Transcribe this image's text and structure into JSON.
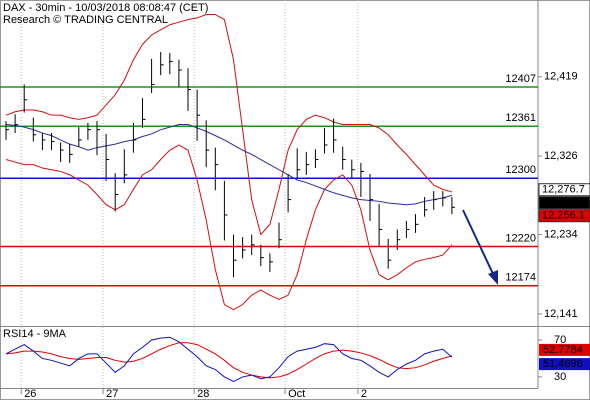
{
  "chart_data": {
    "type": "ohlc",
    "title": "DAX - 30min - 10/03/2018 08:08:47 (CET)",
    "subtitle": "Research © TRADING CENTRAL",
    "categories": [
      null,
      null,
      "26",
      null,
      null,
      null,
      null,
      null,
      null,
      null,
      null,
      "27",
      null,
      null,
      null,
      null,
      null,
      null,
      null,
      null,
      null,
      "28",
      null,
      null,
      null,
      null,
      null,
      null,
      null,
      null,
      null,
      "Oct",
      null,
      null,
      null,
      null,
      null,
      null,
      null,
      "2",
      null,
      null,
      null,
      null,
      null,
      null,
      null,
      null,
      null,
      null
    ],
    "ylim": [
      12128,
      12509
    ],
    "yticks": [
      {
        "value": 12419,
        "label": "12,419"
      },
      {
        "value": 12326,
        "label": "12,326"
      },
      {
        "value": 12234,
        "label": "12,234"
      },
      {
        "value": 12141,
        "label": "12,141"
      }
    ],
    "high": [
      12367,
      12375,
      12410,
      12371,
      12353,
      12353,
      12342,
      12340,
      12360,
      12365,
      12367,
      12352,
      12306,
      12334,
      12365,
      12394,
      12440,
      12448,
      12447,
      12439,
      12429,
      12404,
      12368,
      12336,
      12297,
      12234,
      12231,
      12234,
      12222,
      12212,
      12248,
      12305,
      12335,
      12331,
      12334,
      12359,
      12370,
      12337,
      12322,
      12318,
      12305,
      12270,
      12229,
      12240,
      12250,
      12258,
      12278,
      12285,
      12285,
      12278
    ],
    "low": [
      12345,
      12353,
      12377,
      12343,
      12333,
      12333,
      12319,
      12318,
      12337,
      12345,
      12327,
      12297,
      12261,
      12294,
      12330,
      12359,
      12400,
      12421,
      12422,
      12407,
      12379,
      12344,
      12313,
      12286,
      12227,
      12184,
      12206,
      12210,
      12197,
      12190,
      12218,
      12260,
      12300,
      12304,
      12312,
      12329,
      12330,
      12310,
      12300,
      12278,
      12250,
      12220,
      12194,
      12216,
      12230,
      12236,
      12255,
      12263,
      12267,
      12258
    ],
    "close": [
      12357,
      12363,
      12392,
      12351,
      12345,
      12343,
      12333,
      12328,
      12345,
      12357,
      12357,
      12322,
      12281,
      12304,
      12345,
      12369,
      12410,
      12433,
      12437,
      12427,
      12404,
      12374,
      12333,
      12316,
      12257,
      12204,
      12216,
      12222,
      12207,
      12202,
      12228,
      12275,
      12310,
      12316,
      12322,
      12339,
      12345,
      12322,
      12310,
      12308,
      12275,
      12240,
      12204,
      12228,
      12240,
      12246,
      12263,
      12275,
      12277,
      12266
    ],
    "ma": [
      12363,
      12362,
      12360,
      12357,
      12353,
      12350,
      12345,
      12340,
      12337,
      12333,
      12336,
      12338,
      12340,
      12343,
      12345,
      12349,
      12352,
      12357,
      12360,
      12363,
      12363,
      12359,
      12355,
      12350,
      12345,
      12339,
      12333,
      12328,
      12322,
      12316,
      12310,
      12304,
      12298,
      12295,
      12291,
      12287,
      12283,
      12280,
      12277,
      12275,
      12274,
      12273,
      12271,
      12270,
      12269,
      12270,
      12273,
      12275,
      12277,
      12280
    ],
    "ma_color": "#2a2aa0",
    "upper_band": [
      12374,
      12378,
      12380,
      12380,
      12378,
      12374,
      12374,
      12371,
      12369,
      12371,
      12374,
      12386,
      12398,
      12415,
      12439,
      12457,
      12468,
      12474,
      12480,
      12483,
      12486,
      12488,
      12492,
      12492,
      12486,
      12439,
      12357,
      12275,
      12234,
      12246,
      12287,
      12333,
      12357,
      12369,
      12374,
      12371,
      12366,
      12363,
      12363,
      12363,
      12363,
      12359,
      12351,
      12339,
      12328,
      12316,
      12304,
      12292,
      12287,
      12284
    ],
    "lower_band": [
      12322,
      12319,
      12316,
      12316,
      12312,
      12310,
      12308,
      12304,
      12298,
      12292,
      12281,
      12269,
      12263,
      12269,
      12287,
      12304,
      12310,
      12322,
      12333,
      12339,
      12333,
      12298,
      12251,
      12193,
      12152,
      12146,
      12152,
      12163,
      12169,
      12163,
      12158,
      12163,
      12187,
      12228,
      12263,
      12287,
      12298,
      12304,
      12292,
      12263,
      12216,
      12187,
      12181,
      12187,
      12195,
      12202,
      12205,
      12207,
      12210,
      12222
    ],
    "band_color": "#d01010",
    "levels": [
      12407,
      12361,
      12300,
      12220,
      12174
    ],
    "level_colors": [
      "#1a961a",
      "#1a961a",
      "#1010d0",
      "#e00000",
      "#e00000"
    ],
    "price_labels": [
      {
        "value": 12276.7,
        "label": "12,276.7",
        "color": "#ffffff",
        "text_color": "#000000"
      },
      {
        "value": 12266,
        "label": "12,266",
        "color": "#000000",
        "text_color": "#ffffff"
      },
      {
        "value": 12256.1,
        "label": "12,256.1",
        "color": "#e00000",
        "text_color": "#ffffff"
      }
    ],
    "rsi": {
      "title": "RSI14 - 9MA",
      "ylim": [
        18,
        83
      ],
      "yticks": [
        70,
        30
      ],
      "values": [
        55,
        60,
        65,
        58,
        50,
        48,
        45,
        42,
        50,
        55,
        55,
        45,
        35,
        42,
        55,
        62,
        70,
        72,
        73,
        68,
        60,
        52,
        42,
        38,
        30,
        25,
        30,
        32,
        28,
        30,
        40,
        52,
        58,
        60,
        62,
        66,
        65,
        55,
        50,
        48,
        42,
        35,
        30,
        38,
        44,
        48,
        55,
        58,
        60,
        51.4696
      ],
      "values_color": "#1010c0",
      "ma": [
        55,
        56,
        58,
        58,
        57,
        55,
        52,
        50,
        49,
        50,
        51,
        51,
        48,
        46,
        47,
        50,
        55,
        60,
        64,
        67,
        67,
        65,
        60,
        55,
        48,
        40,
        35,
        32,
        30,
        29,
        30,
        33,
        38,
        44,
        50,
        55,
        58,
        59,
        58,
        56,
        53,
        49,
        44,
        40,
        39,
        40,
        43,
        47,
        50,
        52.7784
      ],
      "ma_color": "#e00000"
    }
  }
}
